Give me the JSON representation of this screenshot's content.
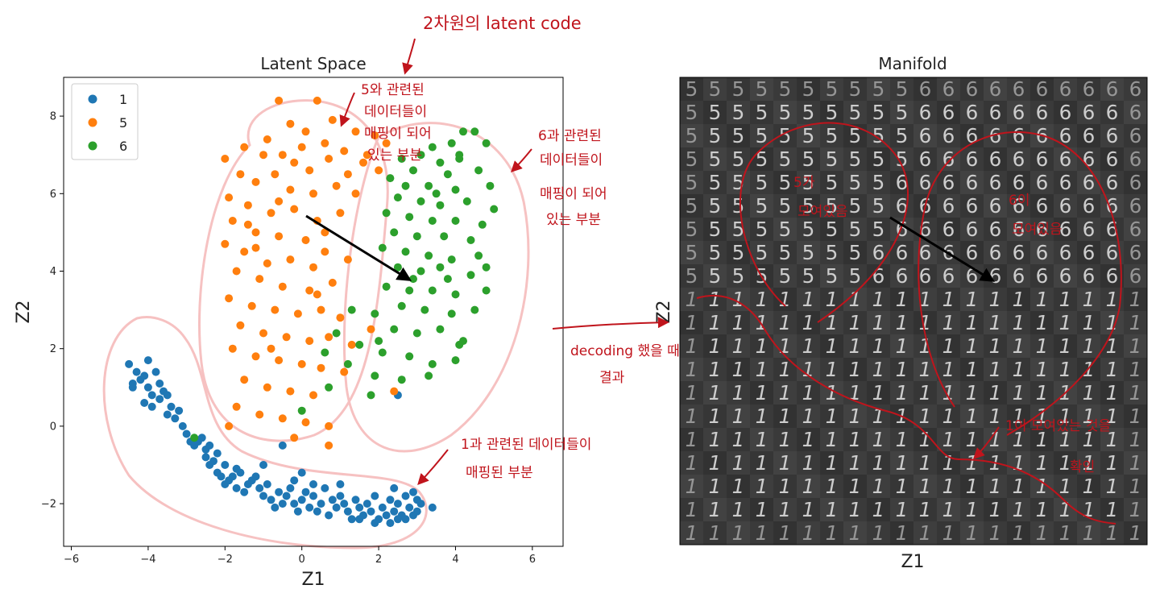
{
  "colors": {
    "c1": "#1f77b4",
    "c5": "#ff7f0e",
    "c6": "#2ca02c",
    "ink": "#c0141c",
    "pink": "#f5b7b7"
  },
  "chart_data": [
    {
      "type": "scatter",
      "title": "Latent Space",
      "xlabel": "Z1",
      "ylabel": "Z2",
      "xlim": [
        -6.2,
        6.8
      ],
      "ylim": [
        -3.1,
        9.0
      ],
      "xticks": [
        "-6",
        "-4",
        "-2",
        "0",
        "2",
        "4",
        "6"
      ],
      "yticks": [
        "-2",
        "0",
        "2",
        "4",
        "6",
        "8"
      ],
      "legend_position": "top-left",
      "series": [
        {
          "name": "1",
          "color": "#1f77b4",
          "points": [
            [
              -4.5,
              1.6
            ],
            [
              -4.4,
              1.1
            ],
            [
              -4.3,
              1.4
            ],
            [
              -4.2,
              1.2
            ],
            [
              -4.1,
              1.3
            ],
            [
              -4.0,
              1.7
            ],
            [
              -4.0,
              1.0
            ],
            [
              -3.9,
              0.8
            ],
            [
              -3.8,
              1.4
            ],
            [
              -4.4,
              1.0
            ],
            [
              -4.1,
              0.6
            ],
            [
              -3.7,
              1.1
            ],
            [
              -3.6,
              0.9
            ],
            [
              -3.7,
              0.7
            ],
            [
              -3.5,
              0.8
            ],
            [
              -3.4,
              0.5
            ],
            [
              -3.3,
              0.2
            ],
            [
              -3.2,
              0.4
            ],
            [
              -3.1,
              0.0
            ],
            [
              -3.0,
              -0.2
            ],
            [
              -2.9,
              -0.4
            ],
            [
              -2.8,
              -0.5
            ],
            [
              -2.7,
              -0.4
            ],
            [
              -2.6,
              -0.3
            ],
            [
              -2.5,
              -0.6
            ],
            [
              -2.5,
              -0.8
            ],
            [
              -2.4,
              -0.5
            ],
            [
              -2.4,
              -1.0
            ],
            [
              -2.3,
              -0.9
            ],
            [
              -2.2,
              -1.2
            ],
            [
              -2.1,
              -1.3
            ],
            [
              -2.0,
              -1.5
            ],
            [
              -1.9,
              -1.4
            ],
            [
              -1.8,
              -1.3
            ],
            [
              -1.7,
              -1.6
            ],
            [
              -1.6,
              -1.2
            ],
            [
              -1.5,
              -1.7
            ],
            [
              -1.4,
              -1.5
            ],
            [
              -1.3,
              -1.4
            ],
            [
              -1.2,
              -1.3
            ],
            [
              -1.1,
              -1.6
            ],
            [
              -1.0,
              -1.8
            ],
            [
              -0.9,
              -1.5
            ],
            [
              -0.8,
              -1.9
            ],
            [
              -0.7,
              -2.1
            ],
            [
              -0.6,
              -1.7
            ],
            [
              -0.5,
              -2.0
            ],
            [
              -0.4,
              -1.8
            ],
            [
              -0.3,
              -1.6
            ],
            [
              -0.2,
              -2.0
            ],
            [
              -0.1,
              -2.2
            ],
            [
              0.0,
              -1.9
            ],
            [
              0.1,
              -1.7
            ],
            [
              0.2,
              -2.1
            ],
            [
              0.3,
              -1.8
            ],
            [
              0.4,
              -2.2
            ],
            [
              0.5,
              -2.0
            ],
            [
              0.6,
              -1.6
            ],
            [
              0.7,
              -2.3
            ],
            [
              0.8,
              -1.9
            ],
            [
              0.9,
              -2.1
            ],
            [
              1.0,
              -1.8
            ],
            [
              1.1,
              -2.0
            ],
            [
              1.2,
              -2.2
            ],
            [
              1.3,
              -2.4
            ],
            [
              1.4,
              -1.9
            ],
            [
              1.5,
              -2.1
            ],
            [
              1.6,
              -2.3
            ],
            [
              1.7,
              -2.0
            ],
            [
              1.8,
              -2.2
            ],
            [
              1.9,
              -1.8
            ],
            [
              2.0,
              -2.4
            ],
            [
              2.1,
              -2.1
            ],
            [
              2.2,
              -2.3
            ],
            [
              2.3,
              -1.9
            ],
            [
              2.4,
              -2.2
            ],
            [
              2.5,
              -2.0
            ],
            [
              2.6,
              -2.3
            ],
            [
              2.7,
              -1.8
            ],
            [
              2.8,
              -2.1
            ],
            [
              2.9,
              -2.3
            ],
            [
              3.0,
              -1.9
            ],
            [
              3.0,
              -2.2
            ],
            [
              2.9,
              -1.7
            ],
            [
              2.7,
              -2.4
            ],
            [
              2.5,
              -2.4
            ],
            [
              2.3,
              -2.5
            ],
            [
              3.4,
              -2.1
            ],
            [
              2.4,
              -1.6
            ],
            [
              0.0,
              -1.2
            ],
            [
              -0.5,
              -0.5
            ],
            [
              -1.0,
              -1.0
            ],
            [
              -3.9,
              0.5
            ],
            [
              -3.5,
              0.3
            ],
            [
              -2.2,
              -0.7
            ],
            [
              2.5,
              0.8
            ],
            [
              3.1,
              -2.0
            ],
            [
              1.0,
              -1.5
            ],
            [
              0.3,
              -1.5
            ],
            [
              -0.2,
              -1.4
            ],
            [
              1.9,
              -2.5
            ],
            [
              1.5,
              -2.4
            ],
            [
              -2.0,
              -1.0
            ],
            [
              -1.7,
              -1.1
            ]
          ]
        },
        {
          "name": "5",
          "color": "#ff7f0e",
          "points": [
            [
              -0.6,
              8.4
            ],
            [
              0.4,
              8.4
            ],
            [
              0.8,
              7.9
            ],
            [
              -0.3,
              7.8
            ],
            [
              0.1,
              7.6
            ],
            [
              0.6,
              7.3
            ],
            [
              1.1,
              7.1
            ],
            [
              1.4,
              7.6
            ],
            [
              1.9,
              7.5
            ],
            [
              2.2,
              7.3
            ],
            [
              -0.9,
              7.4
            ],
            [
              -1.5,
              7.2
            ],
            [
              -1.0,
              7.0
            ],
            [
              -0.5,
              7.0
            ],
            [
              -0.2,
              6.8
            ],
            [
              0.2,
              6.6
            ],
            [
              0.7,
              6.9
            ],
            [
              1.2,
              6.5
            ],
            [
              1.6,
              6.8
            ],
            [
              2.0,
              6.6
            ],
            [
              -1.6,
              6.5
            ],
            [
              -1.2,
              6.3
            ],
            [
              -0.7,
              6.5
            ],
            [
              -0.3,
              6.1
            ],
            [
              0.3,
              6.0
            ],
            [
              0.9,
              6.2
            ],
            [
              1.4,
              6.0
            ],
            [
              -1.9,
              5.9
            ],
            [
              -1.4,
              5.7
            ],
            [
              -0.8,
              5.5
            ],
            [
              -0.2,
              5.6
            ],
            [
              0.4,
              5.3
            ],
            [
              1.0,
              5.5
            ],
            [
              -1.8,
              5.3
            ],
            [
              -1.2,
              5.0
            ],
            [
              -0.6,
              4.9
            ],
            [
              0.1,
              4.8
            ],
            [
              0.6,
              5.0
            ],
            [
              -2.0,
              4.7
            ],
            [
              -1.5,
              4.5
            ],
            [
              -0.9,
              4.2
            ],
            [
              -0.3,
              4.3
            ],
            [
              0.3,
              4.1
            ],
            [
              -1.7,
              4.0
            ],
            [
              -1.1,
              3.8
            ],
            [
              -0.5,
              3.6
            ],
            [
              0.2,
              3.5
            ],
            [
              0.8,
              3.7
            ],
            [
              -1.9,
              3.3
            ],
            [
              -1.3,
              3.1
            ],
            [
              -0.7,
              3.0
            ],
            [
              -0.1,
              2.9
            ],
            [
              0.5,
              3.0
            ],
            [
              1.0,
              2.8
            ],
            [
              -1.6,
              2.6
            ],
            [
              -1.0,
              2.4
            ],
            [
              -0.4,
              2.3
            ],
            [
              0.2,
              2.2
            ],
            [
              0.7,
              2.3
            ],
            [
              1.3,
              2.1
            ],
            [
              -1.8,
              2.0
            ],
            [
              -1.2,
              1.8
            ],
            [
              -0.6,
              1.7
            ],
            [
              0.0,
              1.6
            ],
            [
              0.5,
              1.5
            ],
            [
              1.1,
              1.4
            ],
            [
              -1.5,
              1.2
            ],
            [
              -0.9,
              1.0
            ],
            [
              -0.3,
              0.9
            ],
            [
              0.3,
              0.8
            ],
            [
              -1.7,
              0.5
            ],
            [
              -1.1,
              0.3
            ],
            [
              -0.5,
              0.2
            ],
            [
              0.1,
              0.1
            ],
            [
              0.7,
              0.0
            ],
            [
              -1.9,
              0.0
            ],
            [
              -0.2,
              -0.3
            ],
            [
              0.7,
              -0.5
            ],
            [
              2.4,
              0.9
            ],
            [
              1.8,
              2.5
            ],
            [
              -2.0,
              6.9
            ],
            [
              -1.4,
              5.2
            ],
            [
              0.6,
              4.5
            ],
            [
              1.2,
              4.3
            ],
            [
              -0.6,
              5.8
            ],
            [
              0.0,
              7.2
            ],
            [
              1.7,
              7.0
            ],
            [
              -0.8,
              2.0
            ],
            [
              0.4,
              3.4
            ],
            [
              -1.2,
              4.6
            ]
          ]
        },
        {
          "name": "6",
          "color": "#2ca02c",
          "points": [
            [
              4.2,
              7.6
            ],
            [
              4.5,
              7.6
            ],
            [
              3.9,
              7.3
            ],
            [
              4.8,
              7.3
            ],
            [
              3.4,
              7.2
            ],
            [
              3.1,
              7.0
            ],
            [
              4.1,
              6.9
            ],
            [
              3.6,
              6.8
            ],
            [
              2.6,
              6.9
            ],
            [
              2.9,
              6.6
            ],
            [
              3.8,
              6.5
            ],
            [
              4.6,
              6.6
            ],
            [
              2.3,
              6.4
            ],
            [
              2.7,
              6.2
            ],
            [
              3.3,
              6.2
            ],
            [
              4.0,
              6.1
            ],
            [
              4.9,
              6.2
            ],
            [
              2.5,
              5.9
            ],
            [
              3.1,
              5.8
            ],
            [
              3.6,
              5.7
            ],
            [
              4.3,
              5.8
            ],
            [
              5.0,
              5.6
            ],
            [
              2.2,
              5.5
            ],
            [
              2.8,
              5.4
            ],
            [
              3.4,
              5.3
            ],
            [
              4.0,
              5.3
            ],
            [
              4.7,
              5.2
            ],
            [
              2.4,
              5.0
            ],
            [
              3.0,
              4.9
            ],
            [
              3.7,
              4.9
            ],
            [
              4.4,
              4.8
            ],
            [
              2.1,
              4.6
            ],
            [
              2.7,
              4.5
            ],
            [
              3.3,
              4.4
            ],
            [
              3.9,
              4.3
            ],
            [
              4.6,
              4.4
            ],
            [
              2.5,
              4.1
            ],
            [
              3.1,
              4.0
            ],
            [
              3.8,
              3.8
            ],
            [
              4.4,
              3.9
            ],
            [
              2.2,
              3.6
            ],
            [
              2.8,
              3.5
            ],
            [
              3.4,
              3.5
            ],
            [
              4.0,
              3.4
            ],
            [
              4.8,
              3.5
            ],
            [
              2.6,
              3.1
            ],
            [
              3.2,
              3.0
            ],
            [
              3.9,
              2.9
            ],
            [
              4.5,
              3.0
            ],
            [
              1.3,
              3.0
            ],
            [
              1.9,
              2.9
            ],
            [
              2.4,
              2.5
            ],
            [
              3.0,
              2.4
            ],
            [
              3.6,
              2.5
            ],
            [
              4.2,
              2.2
            ],
            [
              0.9,
              2.4
            ],
            [
              1.5,
              2.1
            ],
            [
              2.1,
              1.9
            ],
            [
              2.8,
              1.8
            ],
            [
              3.4,
              1.6
            ],
            [
              4.0,
              1.7
            ],
            [
              0.6,
              1.9
            ],
            [
              1.2,
              1.6
            ],
            [
              1.9,
              1.3
            ],
            [
              2.6,
              1.2
            ],
            [
              3.3,
              1.3
            ],
            [
              1.8,
              0.8
            ],
            [
              0.7,
              1.0
            ],
            [
              0.0,
              0.4
            ],
            [
              -2.8,
              -0.3
            ],
            [
              4.1,
              7.0
            ],
            [
              3.5,
              6.0
            ],
            [
              4.8,
              4.1
            ],
            [
              2.9,
              3.8
            ],
            [
              3.6,
              4.1
            ],
            [
              4.1,
              2.1
            ],
            [
              2.0,
              2.2
            ]
          ]
        }
      ]
    },
    {
      "type": "image",
      "title": "Manifold",
      "xlabel": "Z1",
      "ylabel": "Z2",
      "grid_rows": 20,
      "grid_cols": 20,
      "top_left_digit": "5",
      "top_right_digit": "6",
      "bottom_digit": "1"
    }
  ],
  "annotations": {
    "latent_code": "2차원의 latent code",
    "five_region": [
      "5와 관련된",
      "데이터들이",
      "매핑이 되어",
      "있는 부분"
    ],
    "six_region": [
      "6과 관련된",
      "데이터들이",
      "매핑이 되어",
      "있는 부분"
    ],
    "one_region": [
      "1과 관련된 데이터들이",
      "매핑된 부분"
    ],
    "decoding": [
      "decoding 했을 때",
      "결과"
    ],
    "five_gathered": [
      "5가",
      "모여있음"
    ],
    "six_gathered": [
      "6이",
      "모여있음"
    ],
    "one_gathered": [
      "1이 모여있는 것을",
      "확인"
    ]
  }
}
